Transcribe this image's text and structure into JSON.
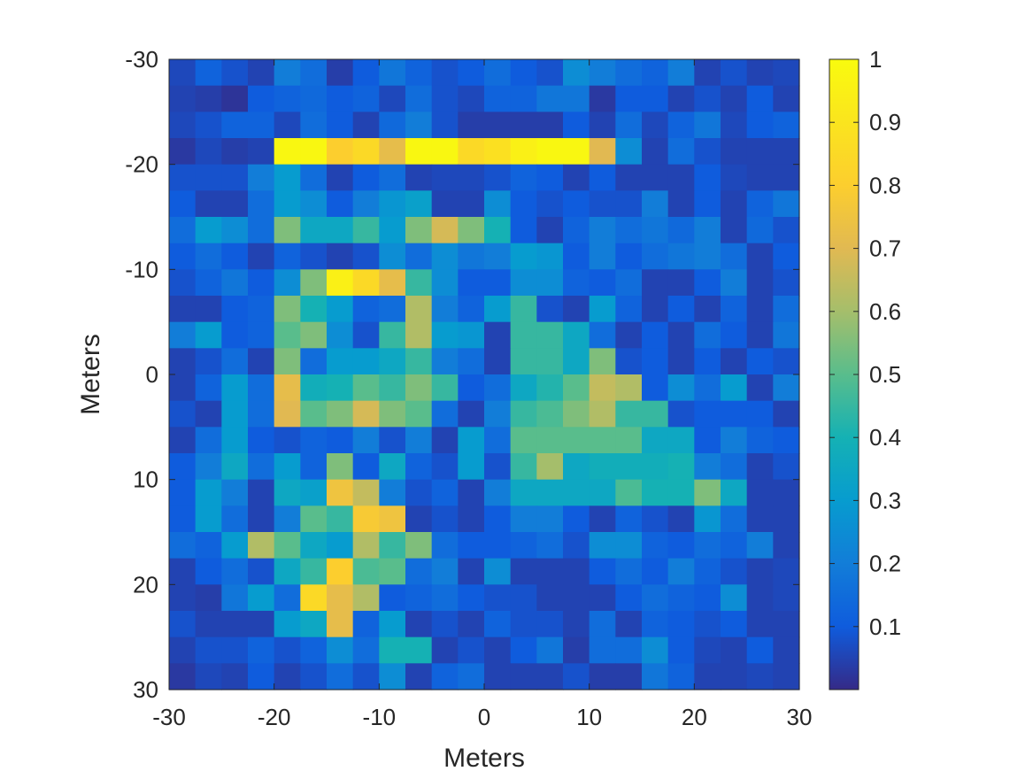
{
  "chart_data": {
    "type": "heatmap",
    "title": "",
    "xlabel": "Meters",
    "ylabel": "Meters",
    "xlim": [
      -30,
      30
    ],
    "ylim": [
      -30,
      30
    ],
    "y_direction": "reversed",
    "grid": false,
    "x_ticks": [
      -30,
      -20,
      -10,
      0,
      10,
      20,
      30
    ],
    "y_ticks": [
      -30,
      -20,
      -10,
      0,
      10,
      20,
      30
    ],
    "colormap": "parula",
    "colorbar": {
      "location": "right",
      "range": [
        0,
        1
      ],
      "ticks": [
        0.1,
        0.2,
        0.3,
        0.4,
        0.5,
        0.6,
        0.7,
        0.8,
        0.9,
        1
      ],
      "tick_labels": [
        "0.1",
        "0.2",
        "0.3",
        "0.4",
        "0.5",
        "0.6",
        "0.7",
        "0.8",
        "0.9",
        "1"
      ]
    },
    "grid_size": [
      24,
      24
    ],
    "values": [
      [
        0.06,
        0.12,
        0.08,
        0.05,
        0.2,
        0.15,
        0.04,
        0.1,
        0.18,
        0.12,
        0.08,
        0.1,
        0.15,
        0.1,
        0.08,
        0.25,
        0.2,
        0.15,
        0.12,
        0.2,
        0.05,
        0.08,
        0.05,
        0.06
      ],
      [
        0.05,
        0.04,
        0.02,
        0.1,
        0.12,
        0.14,
        0.1,
        0.12,
        0.06,
        0.15,
        0.08,
        0.06,
        0.12,
        0.12,
        0.18,
        0.18,
        0.03,
        0.1,
        0.1,
        0.05,
        0.08,
        0.05,
        0.1,
        0.05
      ],
      [
        0.06,
        0.08,
        0.12,
        0.12,
        0.06,
        0.15,
        0.1,
        0.05,
        0.14,
        0.2,
        0.08,
        0.04,
        0.04,
        0.04,
        0.04,
        0.1,
        0.05,
        0.15,
        0.06,
        0.12,
        0.18,
        0.06,
        0.1,
        0.12
      ],
      [
        0.03,
        0.06,
        0.04,
        0.05,
        0.98,
        0.98,
        0.8,
        0.85,
        0.72,
        0.98,
        0.98,
        0.85,
        0.88,
        0.95,
        0.98,
        0.98,
        0.7,
        0.25,
        0.05,
        0.15,
        0.08,
        0.05,
        0.05,
        0.05
      ],
      [
        0.08,
        0.08,
        0.08,
        0.2,
        0.3,
        0.15,
        0.05,
        0.1,
        0.15,
        0.05,
        0.06,
        0.06,
        0.08,
        0.12,
        0.1,
        0.05,
        0.1,
        0.05,
        0.05,
        0.05,
        0.1,
        0.06,
        0.05,
        0.05
      ],
      [
        0.1,
        0.05,
        0.05,
        0.15,
        0.3,
        0.25,
        0.1,
        0.2,
        0.28,
        0.32,
        0.05,
        0.05,
        0.25,
        0.1,
        0.08,
        0.1,
        0.08,
        0.08,
        0.2,
        0.05,
        0.1,
        0.05,
        0.12,
        0.18
      ],
      [
        0.15,
        0.3,
        0.25,
        0.15,
        0.55,
        0.35,
        0.35,
        0.45,
        0.3,
        0.55,
        0.68,
        0.55,
        0.4,
        0.1,
        0.05,
        0.12,
        0.2,
        0.15,
        0.18,
        0.14,
        0.2,
        0.05,
        0.14,
        0.08
      ],
      [
        0.1,
        0.15,
        0.1,
        0.05,
        0.12,
        0.08,
        0.05,
        0.08,
        0.25,
        0.15,
        0.25,
        0.18,
        0.2,
        0.3,
        0.28,
        0.1,
        0.2,
        0.1,
        0.15,
        0.18,
        0.2,
        0.15,
        0.05,
        0.1
      ],
      [
        0.08,
        0.12,
        0.18,
        0.1,
        0.25,
        0.55,
        0.95,
        0.85,
        0.72,
        0.45,
        0.25,
        0.1,
        0.1,
        0.25,
        0.25,
        0.12,
        0.1,
        0.15,
        0.05,
        0.05,
        0.1,
        0.2,
        0.05,
        0.08
      ],
      [
        0.05,
        0.05,
        0.1,
        0.12,
        0.55,
        0.4,
        0.3,
        0.12,
        0.15,
        0.62,
        0.2,
        0.12,
        0.3,
        0.45,
        0.08,
        0.05,
        0.3,
        0.12,
        0.05,
        0.1,
        0.05,
        0.12,
        0.05,
        0.15
      ],
      [
        0.2,
        0.3,
        0.1,
        0.12,
        0.5,
        0.55,
        0.25,
        0.08,
        0.45,
        0.62,
        0.3,
        0.28,
        0.05,
        0.45,
        0.45,
        0.35,
        0.15,
        0.05,
        0.1,
        0.05,
        0.15,
        0.1,
        0.05,
        0.18
      ],
      [
        0.05,
        0.08,
        0.15,
        0.05,
        0.55,
        0.15,
        0.3,
        0.3,
        0.35,
        0.45,
        0.2,
        0.15,
        0.05,
        0.45,
        0.45,
        0.35,
        0.55,
        0.08,
        0.1,
        0.05,
        0.1,
        0.05,
        0.1,
        0.08
      ],
      [
        0.05,
        0.12,
        0.3,
        0.15,
        0.72,
        0.38,
        0.4,
        0.5,
        0.45,
        0.55,
        0.45,
        0.1,
        0.15,
        0.35,
        0.42,
        0.5,
        0.65,
        0.62,
        0.1,
        0.25,
        0.15,
        0.3,
        0.05,
        0.2
      ],
      [
        0.08,
        0.05,
        0.3,
        0.15,
        0.7,
        0.5,
        0.55,
        0.68,
        0.55,
        0.5,
        0.15,
        0.05,
        0.2,
        0.45,
        0.48,
        0.55,
        0.62,
        0.45,
        0.45,
        0.08,
        0.1,
        0.1,
        0.1,
        0.05
      ],
      [
        0.05,
        0.15,
        0.3,
        0.1,
        0.08,
        0.12,
        0.1,
        0.2,
        0.08,
        0.2,
        0.05,
        0.3,
        0.15,
        0.5,
        0.5,
        0.5,
        0.5,
        0.5,
        0.35,
        0.35,
        0.1,
        0.2,
        0.12,
        0.1
      ],
      [
        0.1,
        0.2,
        0.35,
        0.15,
        0.3,
        0.12,
        0.55,
        0.1,
        0.35,
        0.12,
        0.08,
        0.3,
        0.08,
        0.45,
        0.6,
        0.35,
        0.38,
        0.38,
        0.38,
        0.4,
        0.2,
        0.15,
        0.05,
        0.08
      ],
      [
        0.1,
        0.3,
        0.2,
        0.05,
        0.35,
        0.32,
        0.75,
        0.65,
        0.2,
        0.08,
        0.12,
        0.05,
        0.2,
        0.35,
        0.35,
        0.35,
        0.35,
        0.48,
        0.4,
        0.4,
        0.55,
        0.35,
        0.05,
        0.05
      ],
      [
        0.1,
        0.3,
        0.15,
        0.05,
        0.2,
        0.5,
        0.45,
        0.78,
        0.75,
        0.05,
        0.08,
        0.05,
        0.1,
        0.2,
        0.2,
        0.1,
        0.05,
        0.12,
        0.08,
        0.05,
        0.28,
        0.15,
        0.05,
        0.05
      ],
      [
        0.15,
        0.12,
        0.3,
        0.62,
        0.5,
        0.35,
        0.3,
        0.62,
        0.45,
        0.55,
        0.15,
        0.1,
        0.1,
        0.12,
        0.15,
        0.08,
        0.25,
        0.25,
        0.12,
        0.1,
        0.15,
        0.12,
        0.2,
        0.05
      ],
      [
        0.05,
        0.1,
        0.15,
        0.08,
        0.35,
        0.45,
        0.8,
        0.48,
        0.5,
        0.15,
        0.2,
        0.05,
        0.25,
        0.05,
        0.05,
        0.05,
        0.1,
        0.15,
        0.1,
        0.2,
        0.12,
        0.08,
        0.05,
        0.06
      ],
      [
        0.05,
        0.04,
        0.18,
        0.3,
        0.15,
        0.85,
        0.72,
        0.62,
        0.1,
        0.12,
        0.15,
        0.1,
        0.08,
        0.08,
        0.05,
        0.05,
        0.05,
        0.1,
        0.15,
        0.12,
        0.1,
        0.25,
        0.05,
        0.06
      ],
      [
        0.08,
        0.05,
        0.05,
        0.05,
        0.3,
        0.35,
        0.72,
        0.12,
        0.3,
        0.05,
        0.08,
        0.05,
        0.12,
        0.08,
        0.08,
        0.05,
        0.15,
        0.05,
        0.12,
        0.1,
        0.08,
        0.1,
        0.05,
        0.05
      ],
      [
        0.05,
        0.08,
        0.08,
        0.12,
        0.08,
        0.12,
        0.25,
        0.15,
        0.4,
        0.4,
        0.05,
        0.08,
        0.05,
        0.1,
        0.18,
        0.04,
        0.15,
        0.15,
        0.25,
        0.1,
        0.06,
        0.05,
        0.1,
        0.05
      ],
      [
        0.03,
        0.06,
        0.05,
        0.1,
        0.05,
        0.08,
        0.15,
        0.08,
        0.25,
        0.05,
        0.12,
        0.15,
        0.05,
        0.05,
        0.05,
        0.08,
        0.04,
        0.04,
        0.18,
        0.12,
        0.05,
        0.05,
        0.06,
        0.05
      ]
    ]
  }
}
